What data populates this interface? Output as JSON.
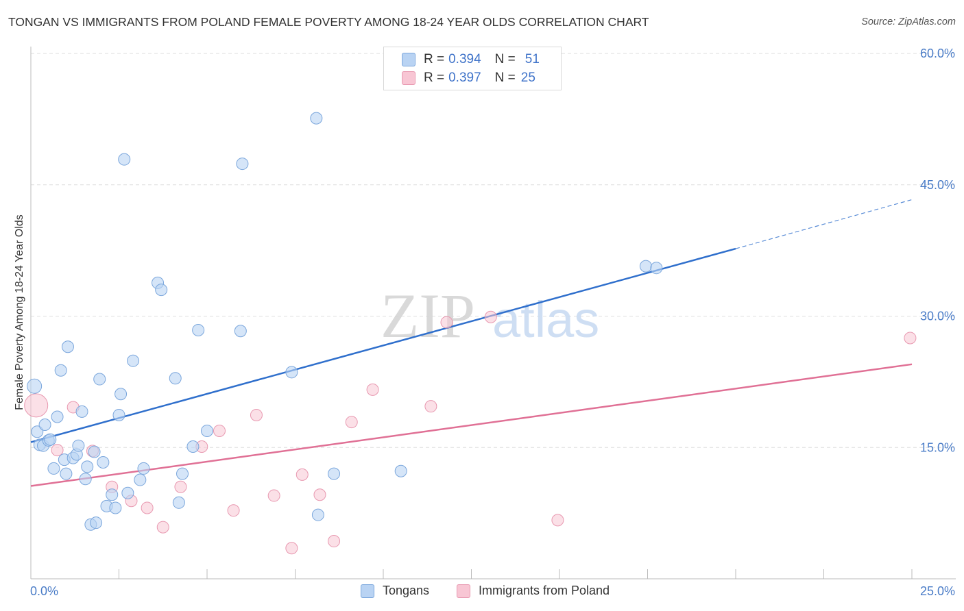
{
  "title": "TONGAN VS IMMIGRANTS FROM POLAND FEMALE POVERTY AMONG 18-24 YEAR OLDS CORRELATION CHART",
  "source": "Source: ZipAtlas.com",
  "watermark": {
    "zip": "ZIP",
    "atlas": "atlas"
  },
  "legend": {
    "rows": [
      {
        "r_label": "R =",
        "r_value": "0.394",
        "n_label": "N =",
        "n_value": "51"
      },
      {
        "r_label": "R =",
        "r_value": "0.397",
        "n_label": "N =",
        "n_value": "25"
      }
    ]
  },
  "bottom_legend": [
    "Tongans",
    "Immigrants from Poland"
  ],
  "colors": {
    "tongans_fill": "#b9d3f3",
    "tongans_stroke": "#7aa6dc",
    "tongans_line": "#2f6fcc",
    "poland_fill": "#f8c6d4",
    "poland_stroke": "#e898b0",
    "poland_line": "#e07095",
    "tick_text": "#4a7cc7",
    "grid": "#dddddd"
  },
  "chart_data": {
    "type": "scatter",
    "title": "TONGAN VS IMMIGRANTS FROM POLAND FEMALE POVERTY AMONG 18-24 YEAR OLDS CORRELATION CHART",
    "xlabel": "",
    "ylabel": "Female Poverty Among 18-24 Year Olds",
    "xlim": [
      0,
      25
    ],
    "ylim": [
      0,
      60
    ],
    "x_tick_labels": [
      {
        "value": 0,
        "label": "0.0%"
      },
      {
        "value": 25,
        "label": "25.0%"
      }
    ],
    "y_tick_labels": [
      {
        "value": 15,
        "label": "15.0%"
      },
      {
        "value": 30,
        "label": "30.0%"
      },
      {
        "value": 45,
        "label": "45.0%"
      },
      {
        "value": 60,
        "label": "60.0%"
      }
    ],
    "series": [
      {
        "name": "Tongans",
        "r": 0.394,
        "n": 51,
        "trend": {
          "x0": 0,
          "y0": 15.6,
          "x1": 20,
          "y1": 37.7,
          "dash_to_x": 25,
          "dash_to_y": 43.3
        },
        "points": [
          [
            0.1,
            22.0
          ],
          [
            0.18,
            16.8
          ],
          [
            0.25,
            15.3
          ],
          [
            0.35,
            15.2
          ],
          [
            0.4,
            17.6
          ],
          [
            0.5,
            15.8
          ],
          [
            0.55,
            15.9
          ],
          [
            0.65,
            12.6
          ],
          [
            0.75,
            18.5
          ],
          [
            0.85,
            23.8
          ],
          [
            0.95,
            13.6
          ],
          [
            1.0,
            12.0
          ],
          [
            1.05,
            26.5
          ],
          [
            1.2,
            13.8
          ],
          [
            1.3,
            14.2
          ],
          [
            1.35,
            15.2
          ],
          [
            1.45,
            19.1
          ],
          [
            1.55,
            11.4
          ],
          [
            1.6,
            12.8
          ],
          [
            1.7,
            6.2
          ],
          [
            1.8,
            14.5
          ],
          [
            1.85,
            6.4
          ],
          [
            1.95,
            22.8
          ],
          [
            2.05,
            13.3
          ],
          [
            2.15,
            8.3
          ],
          [
            2.3,
            9.6
          ],
          [
            2.4,
            8.1
          ],
          [
            2.5,
            18.7
          ],
          [
            2.55,
            21.1
          ],
          [
            2.65,
            47.9
          ],
          [
            2.75,
            9.8
          ],
          [
            2.9,
            24.9
          ],
          [
            3.1,
            11.3
          ],
          [
            3.2,
            12.6
          ],
          [
            3.6,
            33.8
          ],
          [
            3.7,
            33.0
          ],
          [
            4.1,
            22.9
          ],
          [
            4.2,
            8.7
          ],
          [
            4.3,
            12.0
          ],
          [
            4.6,
            15.1
          ],
          [
            4.75,
            28.4
          ],
          [
            5.0,
            16.9
          ],
          [
            5.95,
            28.3
          ],
          [
            6.0,
            47.4
          ],
          [
            7.4,
            23.6
          ],
          [
            8.1,
            52.6
          ],
          [
            8.15,
            7.3
          ],
          [
            8.6,
            12.0
          ],
          [
            10.5,
            12.3
          ],
          [
            17.45,
            35.7
          ],
          [
            17.75,
            35.5
          ]
        ]
      },
      {
        "name": "Immigrants from Poland",
        "r": 0.397,
        "n": 25,
        "trend": {
          "x0": 0,
          "y0": 10.6,
          "x1": 25,
          "y1": 24.5
        },
        "points": [
          [
            0.15,
            19.8
          ],
          [
            0.75,
            14.7
          ],
          [
            1.2,
            19.6
          ],
          [
            1.75,
            14.6
          ],
          [
            2.3,
            10.5
          ],
          [
            2.85,
            8.9
          ],
          [
            3.3,
            8.1
          ],
          [
            3.75,
            5.9
          ],
          [
            4.25,
            10.5
          ],
          [
            4.85,
            15.1
          ],
          [
            5.35,
            16.9
          ],
          [
            5.75,
            7.8
          ],
          [
            6.4,
            18.7
          ],
          [
            6.9,
            9.5
          ],
          [
            7.4,
            3.5
          ],
          [
            7.7,
            11.9
          ],
          [
            8.2,
            9.6
          ],
          [
            8.6,
            4.3
          ],
          [
            9.1,
            17.9
          ],
          [
            9.7,
            21.6
          ],
          [
            11.35,
            19.7
          ],
          [
            11.8,
            29.3
          ],
          [
            13.05,
            29.9
          ],
          [
            14.95,
            6.7
          ],
          [
            24.95,
            27.5
          ]
        ]
      }
    ]
  }
}
